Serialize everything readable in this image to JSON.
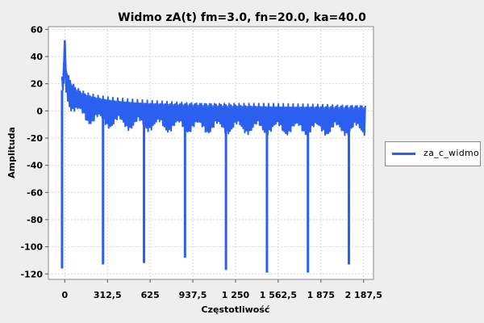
{
  "chart_data": {
    "type": "line",
    "title": "Widmo zA(t) fm=3.0, fn=20.0, ka=40.0",
    "xlabel": "Częstotliwość",
    "ylabel": "Amplituda",
    "xlim": [
      -120,
      2260
    ],
    "ylim": [
      -124,
      62
    ],
    "x_ticks": [
      0,
      312.5,
      625,
      937.5,
      1250,
      1562.5,
      1875,
      2187.5
    ],
    "x_tick_labels": [
      "0",
      "312,5",
      "625",
      "937,5",
      "1 250",
      "1 562,5",
      "1 875",
      "2 187,5"
    ],
    "y_ticks": [
      60,
      40,
      20,
      0,
      -20,
      -40,
      -60,
      -80,
      -100,
      -120
    ],
    "y_tick_labels": [
      "60",
      "40",
      "20",
      "0",
      "-20",
      "-40",
      "-60",
      "-80",
      "-100",
      "-120"
    ],
    "grid": true,
    "legend_position": "right",
    "series": [
      {
        "name": "za_c_widmo",
        "color": "#2a5ff0",
        "x_range": [
          -20,
          2200
        ],
        "peak": {
          "x": 0,
          "y": 52
        },
        "dips": [
          {
            "x": -20,
            "y": -116
          },
          {
            "x": 280,
            "y": -113
          },
          {
            "x": 580,
            "y": -112
          },
          {
            "x": 880,
            "y": -108
          },
          {
            "x": 1180,
            "y": -117
          },
          {
            "x": 1480,
            "y": -119
          },
          {
            "x": 1780,
            "y": -119
          },
          {
            "x": 2080,
            "y": -113
          }
        ]
      }
    ]
  }
}
